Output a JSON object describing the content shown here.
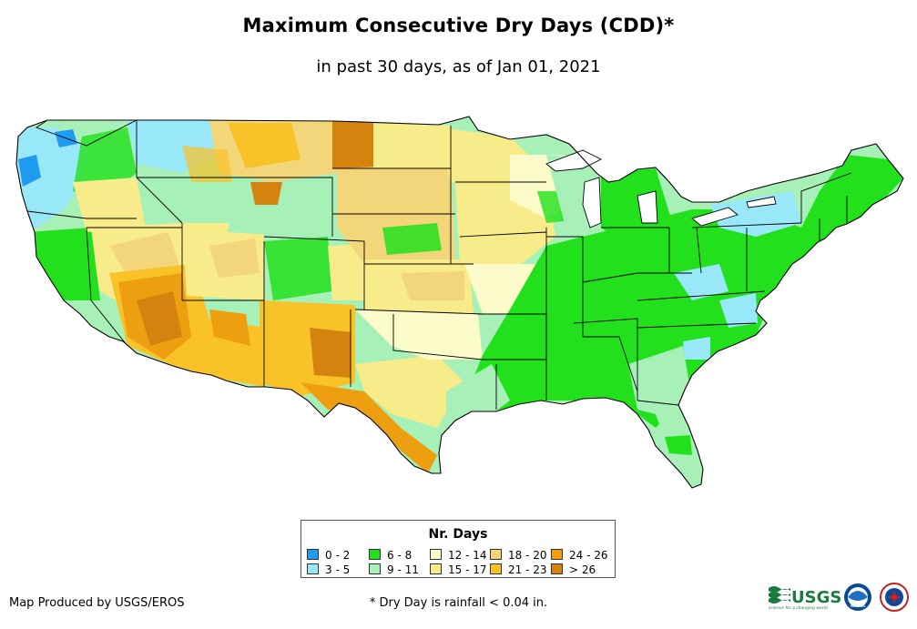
{
  "title": "Maximum Consecutive Dry Days (CDD)*",
  "subtitle": "in past 30 days, as of Jan 01, 2021",
  "legend": {
    "title": "Nr. Days",
    "items": [
      {
        "label": "0 - 2",
        "color": "#1f9bf0"
      },
      {
        "label": "3 - 5",
        "color": "#99e8fa"
      },
      {
        "label": "6 - 8",
        "color": "#22e01c"
      },
      {
        "label": "9 - 11",
        "color": "#a7f0b8"
      },
      {
        "label": "12 - 14",
        "color": "#fbfcc9"
      },
      {
        "label": "15 - 17",
        "color": "#f7eb8a"
      },
      {
        "label": "18 - 20",
        "color": "#f3d67a"
      },
      {
        "label": "21 - 23",
        "color": "#f8c228"
      },
      {
        "label": "24 - 26",
        "color": "#ee9f0f"
      },
      {
        "label": "> 26",
        "color": "#d4830e"
      }
    ]
  },
  "credit": "Map Produced by USGS/EROS",
  "footnote": "* Dry Day is rainfall < 0.04 in.",
  "logos": {
    "usgs_text": "USGS",
    "usgs_tagline": "science for a changing world",
    "noaa_text": "NOAA"
  }
}
